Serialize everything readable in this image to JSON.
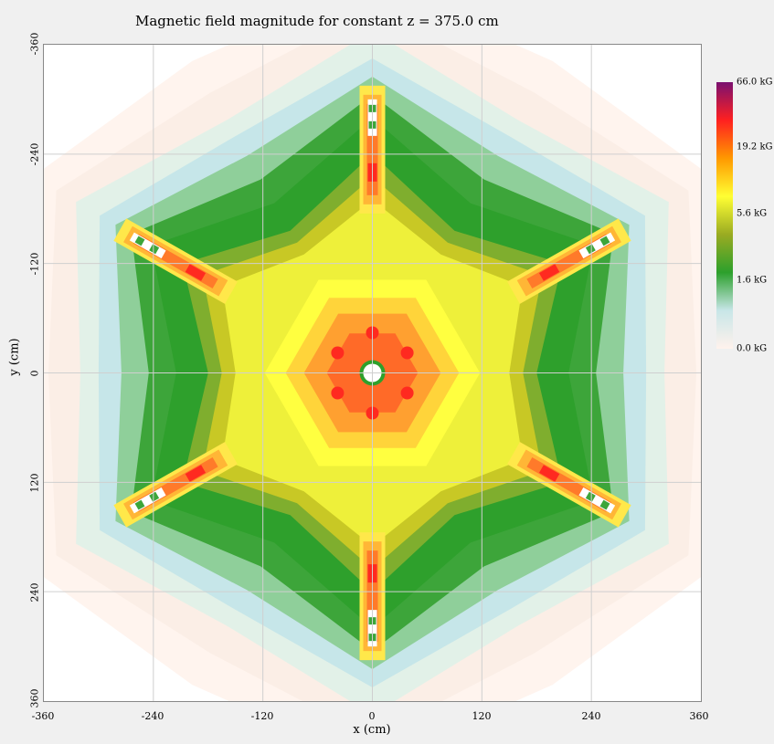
{
  "chart_data": {
    "type": "heatmap",
    "title": "Magnetic field magnitude for constant z = 375.0 cm",
    "xlabel": "x (cm)",
    "ylabel": "y (cm)",
    "xlim": [
      -360,
      360
    ],
    "ylim": [
      -360,
      360
    ],
    "y_axis_direction": "downward increasing",
    "x_ticks": [
      "-360",
      "-240",
      "-120",
      "0",
      "120",
      "240",
      "360"
    ],
    "y_ticks": [
      "-360",
      "-240",
      "-120",
      "0",
      "120",
      "240",
      "360"
    ],
    "grid": true,
    "symmetry": "six-fold",
    "colorbar": {
      "placement": "right",
      "labels": [
        "66.0 kG",
        "19.2 kG",
        "5.6 kG",
        "1.6 kG",
        "0.0 kG"
      ],
      "values_kG": [
        66.0,
        19.2,
        5.6,
        1.6,
        0.0
      ],
      "colors": [
        "#7a1070",
        "#ff2020",
        "#ff9900",
        "#ffff33",
        "#9aab22",
        "#2ca02c",
        "#c8e6e8",
        "#fff2ec"
      ]
    },
    "features": [
      {
        "label": "central peak",
        "x": 0,
        "y": 0,
        "approx_kG": 20
      },
      {
        "label": "coil",
        "x": 0,
        "y": -250,
        "approx_kG": 25
      },
      {
        "label": "coil",
        "x": 0,
        "y": 250,
        "approx_kG": 25
      },
      {
        "label": "coil",
        "x": 220,
        "y": -125,
        "approx_kG": 25
      },
      {
        "label": "coil",
        "x": -220,
        "y": -125,
        "approx_kG": 25
      },
      {
        "label": "coil",
        "x": 220,
        "y": 125,
        "approx_kG": 25
      },
      {
        "label": "coil",
        "x": -220,
        "y": 125,
        "approx_kG": 25
      }
    ]
  }
}
